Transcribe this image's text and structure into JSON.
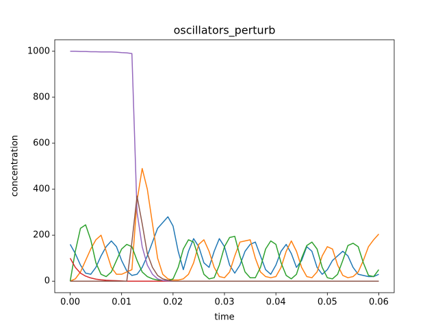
{
  "chart_data": {
    "type": "line",
    "title": "oscillators_perturb",
    "xlabel": "time",
    "ylabel": "concentration",
    "x": [
      0,
      0.001,
      0.002,
      0.003,
      0.004,
      0.005,
      0.006,
      0.007,
      0.008,
      0.009,
      0.01,
      0.011,
      0.012,
      0.013,
      0.014,
      0.015,
      0.016,
      0.017,
      0.018,
      0.019,
      0.02,
      0.021,
      0.022,
      0.023,
      0.024,
      0.025,
      0.026,
      0.027,
      0.028,
      0.029,
      0.03,
      0.031,
      0.032,
      0.033,
      0.034,
      0.035,
      0.036,
      0.037,
      0.038,
      0.039,
      0.04,
      0.041,
      0.042,
      0.043,
      0.044,
      0.045,
      0.046,
      0.047,
      0.048,
      0.049,
      0.05,
      0.051,
      0.052,
      0.053,
      0.054,
      0.055,
      0.056,
      0.057,
      0.058,
      0.059,
      0.06
    ],
    "series": [
      {
        "color": "#1f77b4",
        "values": [
          160,
          120,
          70,
          35,
          30,
          60,
          110,
          150,
          175,
          150,
          90,
          45,
          25,
          30,
          60,
          110,
          170,
          230,
          255,
          280,
          240,
          130,
          50,
          130,
          185,
          150,
          80,
          60,
          130,
          185,
          150,
          70,
          35,
          70,
          130,
          160,
          170,
          110,
          50,
          30,
          70,
          130,
          160,
          120,
          60,
          90,
          150,
          130,
          60,
          30,
          50,
          90,
          110,
          130,
          110,
          60,
          30,
          25,
          20,
          20,
          30
        ]
      },
      {
        "color": "#ff7f0e",
        "values": [
          0,
          10,
          40,
          90,
          140,
          180,
          200,
          130,
          60,
          30,
          30,
          40,
          50,
          350,
          490,
          400,
          250,
          100,
          30,
          10,
          5,
          5,
          10,
          30,
          80,
          160,
          180,
          130,
          60,
          20,
          15,
          40,
          110,
          170,
          175,
          180,
          100,
          40,
          20,
          15,
          20,
          60,
          130,
          175,
          130,
          60,
          20,
          15,
          40,
          110,
          150,
          140,
          70,
          25,
          15,
          20,
          40,
          90,
          150,
          180,
          205
        ]
      },
      {
        "color": "#2ca02c",
        "values": [
          0,
          130,
          230,
          245,
          180,
          80,
          30,
          20,
          40,
          90,
          140,
          160,
          150,
          90,
          40,
          20,
          10,
          5,
          3,
          2,
          10,
          60,
          140,
          180,
          170,
          100,
          30,
          10,
          15,
          70,
          150,
          190,
          195,
          110,
          40,
          15,
          15,
          60,
          140,
          175,
          160,
          80,
          25,
          10,
          30,
          100,
          155,
          170,
          140,
          60,
          15,
          10,
          30,
          90,
          155,
          165,
          150,
          80,
          25,
          20,
          50
        ]
      },
      {
        "color": "#d62728",
        "values": [
          100,
          60,
          35,
          22,
          14,
          9,
          6,
          4,
          3,
          2,
          1,
          0,
          0,
          0,
          0,
          0,
          0,
          0,
          0,
          0,
          0,
          0,
          0,
          0,
          0,
          0,
          0,
          0,
          0,
          0,
          0,
          0,
          0,
          0,
          0,
          0,
          0,
          0,
          0,
          0,
          0,
          0,
          0,
          0,
          0,
          0,
          0,
          0,
          0,
          0,
          0,
          0,
          0,
          0,
          0,
          0,
          0,
          0,
          0,
          0,
          0
        ]
      },
      {
        "color": "#9467bd",
        "values": [
          1000,
          1000,
          999,
          999,
          998,
          998,
          997,
          997,
          997,
          996,
          994,
          993,
          990,
          300,
          150,
          70,
          30,
          10,
          3,
          1,
          0,
          0,
          0,
          0,
          0,
          0,
          0,
          0,
          0,
          0,
          0,
          0,
          0,
          0,
          0,
          0,
          0,
          0,
          0,
          0,
          0,
          0,
          0,
          0,
          0,
          0,
          0,
          0,
          0,
          0,
          0,
          0,
          0,
          0,
          0,
          0,
          0,
          0,
          0,
          0,
          0
        ]
      },
      {
        "color": "#8c564b",
        "values": [
          0,
          0,
          0,
          0,
          0,
          0,
          0,
          0,
          0,
          0,
          0,
          0,
          170,
          370,
          250,
          120,
          60,
          25,
          10,
          4,
          0,
          0,
          0,
          0,
          0,
          0,
          0,
          0,
          0,
          0,
          0,
          0,
          0,
          0,
          0,
          0,
          0,
          0,
          0,
          0,
          0,
          0,
          0,
          0,
          0,
          0,
          0,
          0,
          0,
          0,
          0,
          0,
          0,
          0,
          0,
          0,
          0,
          0,
          0,
          0,
          0
        ]
      }
    ],
    "xlim": [
      -0.003,
      0.063
    ],
    "ylim": [
      -50,
      1050
    ],
    "xticks": [
      {
        "value": 0,
        "label": "0.00"
      },
      0.01,
      0.02,
      0.03,
      0.04,
      0.05,
      0.06
    ],
    "yticks": [
      0,
      200,
      400,
      600,
      800,
      1000
    ]
  }
}
